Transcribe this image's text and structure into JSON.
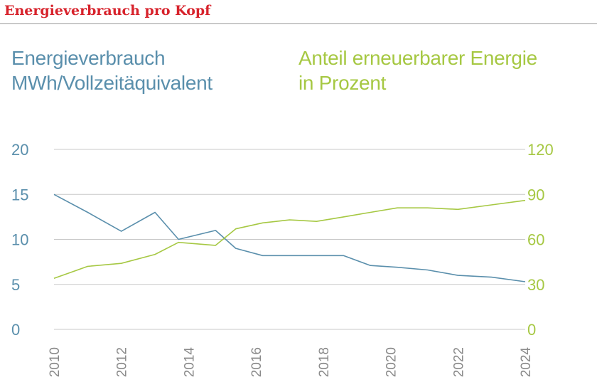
{
  "header": {
    "title": "Energieverbrauch pro Kopf"
  },
  "colors": {
    "title": "#d7222b",
    "energy": "#5a8fac",
    "renewable": "#a6c843",
    "grid": "#c8c8c8",
    "axis_text": "#8a8a8a"
  },
  "labels": {
    "left_line1": "Energieverbrauch",
    "left_line2": "MWh/Vollzeitäquivalent",
    "right_line1": "Anteil erneuerbarer Energie",
    "right_line2": "in Prozent"
  },
  "chart_data": {
    "type": "line",
    "title": "Energieverbrauch pro Kopf",
    "x_ticks": [
      "2010",
      "2012",
      "2014",
      "2016",
      "2018",
      "2020",
      "2022",
      "2024"
    ],
    "xlim": [
      2010,
      2024
    ],
    "y_left": {
      "label": "Energieverbrauch MWh/Vollzeitäquivalent",
      "lim": [
        0,
        20
      ],
      "ticks": [
        "0",
        "5",
        "10",
        "15",
        "20"
      ]
    },
    "y_right": {
      "label": "Anteil erneuerbarer Energie in Prozent",
      "lim": [
        0,
        120
      ],
      "ticks": [
        "0",
        "30",
        "60",
        "90",
        "120"
      ]
    },
    "grid": true,
    "series": [
      {
        "key": "energy",
        "axis": "left",
        "x": [
          2010,
          2011,
          2012,
          2013,
          2013.7,
          2014.8,
          2015.4,
          2016.2,
          2017.0,
          2017.8,
          2018.6,
          2019.4,
          2020.2,
          2021.1,
          2022.0,
          2023.0,
          2024.0
        ],
        "y": [
          15.0,
          13.0,
          10.9,
          13.0,
          10.0,
          11.0,
          9.0,
          8.2,
          8.2,
          8.2,
          8.2,
          7.1,
          6.9,
          6.6,
          6.0,
          5.8,
          5.3
        ]
      },
      {
        "key": "renewable",
        "axis": "right",
        "x": [
          2010,
          2011,
          2012,
          2013,
          2013.7,
          2014.8,
          2015.4,
          2016.2,
          2017.0,
          2017.8,
          2018.6,
          2019.4,
          2020.2,
          2021.1,
          2022.0,
          2023.0,
          2024.0
        ],
        "y": [
          34,
          42,
          44,
          50,
          58,
          56,
          67,
          71,
          73,
          72,
          75,
          78,
          81,
          81,
          80,
          83,
          86
        ]
      }
    ]
  }
}
